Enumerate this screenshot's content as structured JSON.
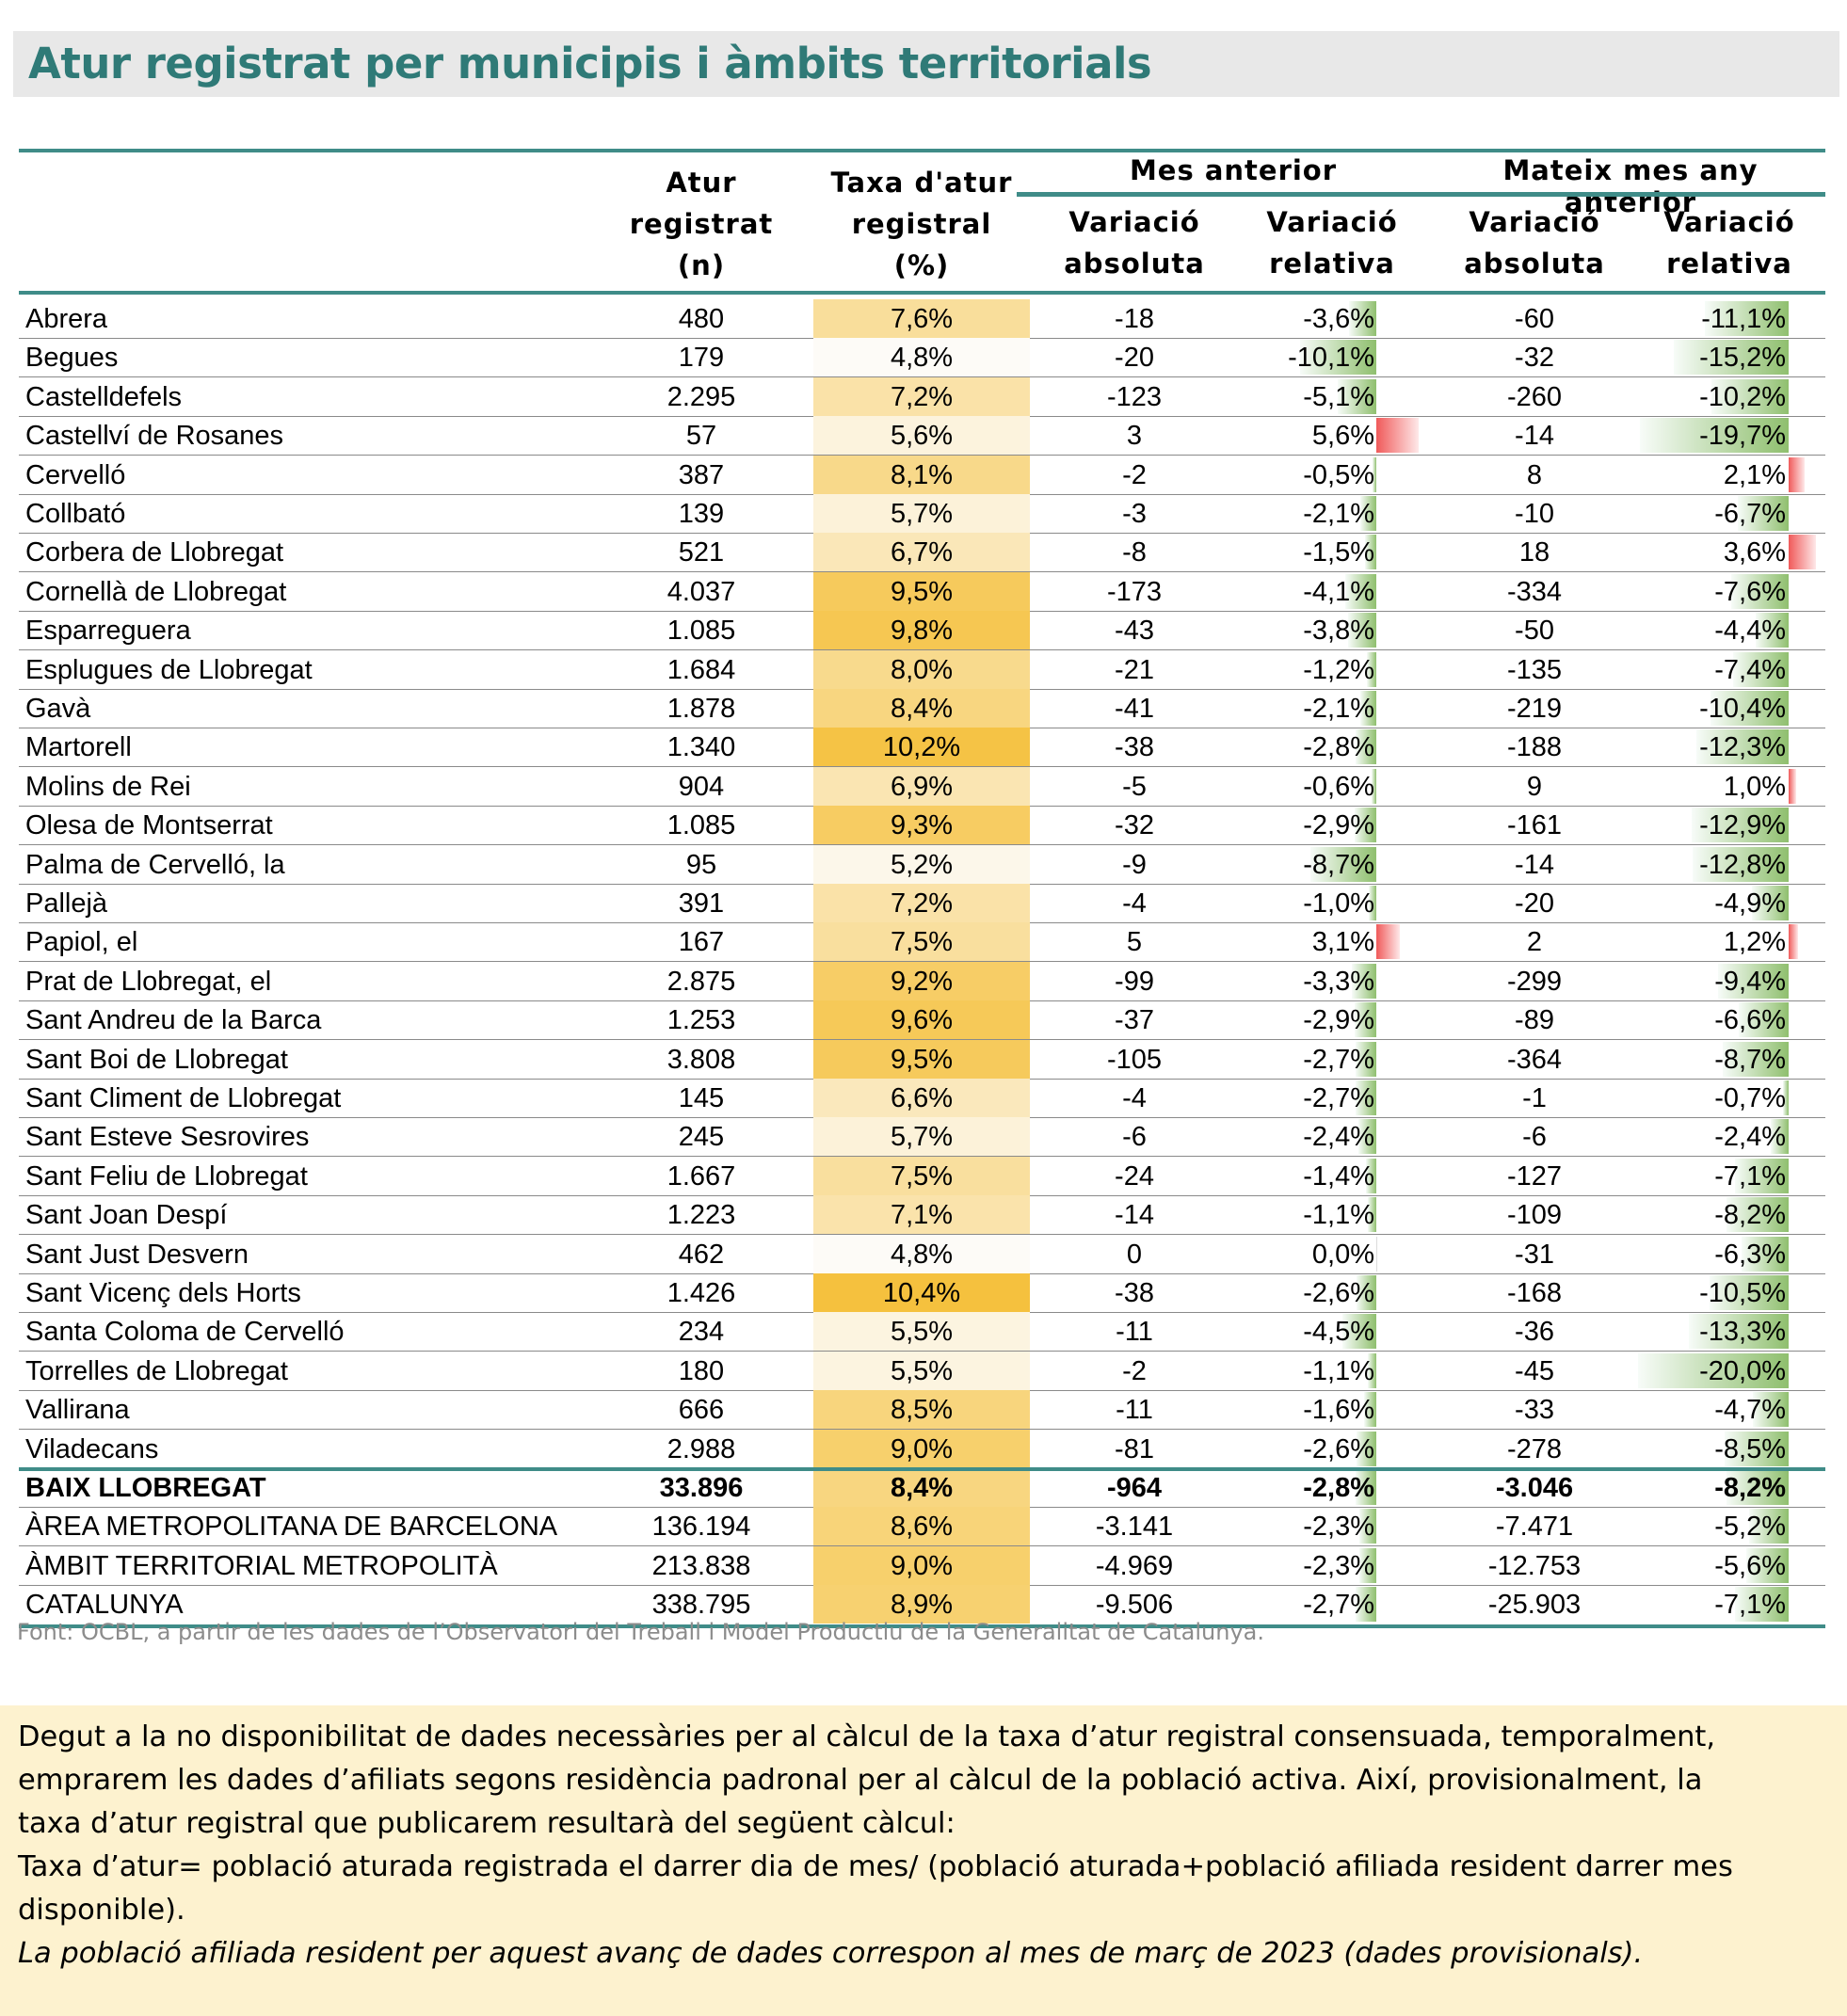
{
  "title": "Atur registrat per municipis i àmbits territorials",
  "headers": {
    "atur": [
      "Atur",
      "registrat",
      "(n)"
    ],
    "taxa": [
      "Taxa d'atur",
      "registral",
      "(%)"
    ],
    "group_month": "Mes anterior",
    "group_year": "Mateix mes any anterior",
    "var_abs": [
      "Variació",
      "absoluta"
    ],
    "var_rel": [
      "Variació",
      "relativa"
    ]
  },
  "rows": [
    {
      "name": "Abrera",
      "atur": "480",
      "taxa": "7,6%",
      "taxa_v": 7.6,
      "m_abs": "-18",
      "m_rel": "-3,6%",
      "m_rel_v": -3.6,
      "y_abs": "-60",
      "y_rel": "-11,1%",
      "y_rel_v": -11.1
    },
    {
      "name": "Begues",
      "atur": "179",
      "taxa": "4,8%",
      "taxa_v": 4.8,
      "m_abs": "-20",
      "m_rel": "-10,1%",
      "m_rel_v": -10.1,
      "y_abs": "-32",
      "y_rel": "-15,2%",
      "y_rel_v": -15.2
    },
    {
      "name": "Castelldefels",
      "atur": "2.295",
      "taxa": "7,2%",
      "taxa_v": 7.2,
      "m_abs": "-123",
      "m_rel": "-5,1%",
      "m_rel_v": -5.1,
      "y_abs": "-260",
      "y_rel": "-10,2%",
      "y_rel_v": -10.2
    },
    {
      "name": "Castellví de Rosanes",
      "atur": "57",
      "taxa": "5,6%",
      "taxa_v": 5.6,
      "m_abs": "3",
      "m_rel": "5,6%",
      "m_rel_v": 5.6,
      "y_abs": "-14",
      "y_rel": "-19,7%",
      "y_rel_v": -19.7
    },
    {
      "name": "Cervelló",
      "atur": "387",
      "taxa": "8,1%",
      "taxa_v": 8.1,
      "m_abs": "-2",
      "m_rel": "-0,5%",
      "m_rel_v": -0.5,
      "y_abs": "8",
      "y_rel": "2,1%",
      "y_rel_v": 2.1
    },
    {
      "name": "Collbató",
      "atur": "139",
      "taxa": "5,7%",
      "taxa_v": 5.7,
      "m_abs": "-3",
      "m_rel": "-2,1%",
      "m_rel_v": -2.1,
      "y_abs": "-10",
      "y_rel": "-6,7%",
      "y_rel_v": -6.7
    },
    {
      "name": "Corbera de Llobregat",
      "atur": "521",
      "taxa": "6,7%",
      "taxa_v": 6.7,
      "m_abs": "-8",
      "m_rel": "-1,5%",
      "m_rel_v": -1.5,
      "y_abs": "18",
      "y_rel": "3,6%",
      "y_rel_v": 3.6
    },
    {
      "name": "Cornellà de Llobregat",
      "atur": "4.037",
      "taxa": "9,5%",
      "taxa_v": 9.5,
      "m_abs": "-173",
      "m_rel": "-4,1%",
      "m_rel_v": -4.1,
      "y_abs": "-334",
      "y_rel": "-7,6%",
      "y_rel_v": -7.6
    },
    {
      "name": "Esparreguera",
      "atur": "1.085",
      "taxa": "9,8%",
      "taxa_v": 9.8,
      "m_abs": "-43",
      "m_rel": "-3,8%",
      "m_rel_v": -3.8,
      "y_abs": "-50",
      "y_rel": "-4,4%",
      "y_rel_v": -4.4
    },
    {
      "name": "Esplugues de Llobregat",
      "atur": "1.684",
      "taxa": "8,0%",
      "taxa_v": 8.0,
      "m_abs": "-21",
      "m_rel": "-1,2%",
      "m_rel_v": -1.2,
      "y_abs": "-135",
      "y_rel": "-7,4%",
      "y_rel_v": -7.4
    },
    {
      "name": "Gavà",
      "atur": "1.878",
      "taxa": "8,4%",
      "taxa_v": 8.4,
      "m_abs": "-41",
      "m_rel": "-2,1%",
      "m_rel_v": -2.1,
      "y_abs": "-219",
      "y_rel": "-10,4%",
      "y_rel_v": -10.4
    },
    {
      "name": "Martorell",
      "atur": "1.340",
      "taxa": "10,2%",
      "taxa_v": 10.2,
      "m_abs": "-38",
      "m_rel": "-2,8%",
      "m_rel_v": -2.8,
      "y_abs": "-188",
      "y_rel": "-12,3%",
      "y_rel_v": -12.3
    },
    {
      "name": "Molins de Rei",
      "atur": "904",
      "taxa": "6,9%",
      "taxa_v": 6.9,
      "m_abs": "-5",
      "m_rel": "-0,6%",
      "m_rel_v": -0.6,
      "y_abs": "9",
      "y_rel": "1,0%",
      "y_rel_v": 1.0
    },
    {
      "name": "Olesa de Montserrat",
      "atur": "1.085",
      "taxa": "9,3%",
      "taxa_v": 9.3,
      "m_abs": "-32",
      "m_rel": "-2,9%",
      "m_rel_v": -2.9,
      "y_abs": "-161",
      "y_rel": "-12,9%",
      "y_rel_v": -12.9
    },
    {
      "name": "Palma de Cervelló, la",
      "atur": "95",
      "taxa": "5,2%",
      "taxa_v": 5.2,
      "m_abs": "-9",
      "m_rel": "-8,7%",
      "m_rel_v": -8.7,
      "y_abs": "-14",
      "y_rel": "-12,8%",
      "y_rel_v": -12.8
    },
    {
      "name": "Pallejà",
      "atur": "391",
      "taxa": "7,2%",
      "taxa_v": 7.2,
      "m_abs": "-4",
      "m_rel": "-1,0%",
      "m_rel_v": -1.0,
      "y_abs": "-20",
      "y_rel": "-4,9%",
      "y_rel_v": -4.9
    },
    {
      "name": "Papiol, el",
      "atur": "167",
      "taxa": "7,5%",
      "taxa_v": 7.5,
      "m_abs": "5",
      "m_rel": "3,1%",
      "m_rel_v": 3.1,
      "y_abs": "2",
      "y_rel": "1,2%",
      "y_rel_v": 1.2
    },
    {
      "name": "Prat de Llobregat, el",
      "atur": "2.875",
      "taxa": "9,2%",
      "taxa_v": 9.2,
      "m_abs": "-99",
      "m_rel": "-3,3%",
      "m_rel_v": -3.3,
      "y_abs": "-299",
      "y_rel": "-9,4%",
      "y_rel_v": -9.4
    },
    {
      "name": "Sant Andreu de la Barca",
      "atur": "1.253",
      "taxa": "9,6%",
      "taxa_v": 9.6,
      "m_abs": "-37",
      "m_rel": "-2,9%",
      "m_rel_v": -2.9,
      "y_abs": "-89",
      "y_rel": "-6,6%",
      "y_rel_v": -6.6
    },
    {
      "name": "Sant Boi de Llobregat",
      "atur": "3.808",
      "taxa": "9,5%",
      "taxa_v": 9.5,
      "m_abs": "-105",
      "m_rel": "-2,7%",
      "m_rel_v": -2.7,
      "y_abs": "-364",
      "y_rel": "-8,7%",
      "y_rel_v": -8.7
    },
    {
      "name": "Sant Climent de Llobregat",
      "atur": "145",
      "taxa": "6,6%",
      "taxa_v": 6.6,
      "m_abs": "-4",
      "m_rel": "-2,7%",
      "m_rel_v": -2.7,
      "y_abs": "-1",
      "y_rel": "-0,7%",
      "y_rel_v": -0.7
    },
    {
      "name": "Sant Esteve Sesrovires",
      "atur": "245",
      "taxa": "5,7%",
      "taxa_v": 5.7,
      "m_abs": "-6",
      "m_rel": "-2,4%",
      "m_rel_v": -2.4,
      "y_abs": "-6",
      "y_rel": "-2,4%",
      "y_rel_v": -2.4
    },
    {
      "name": "Sant Feliu de Llobregat",
      "atur": "1.667",
      "taxa": "7,5%",
      "taxa_v": 7.5,
      "m_abs": "-24",
      "m_rel": "-1,4%",
      "m_rel_v": -1.4,
      "y_abs": "-127",
      "y_rel": "-7,1%",
      "y_rel_v": -7.1
    },
    {
      "name": "Sant Joan Despí",
      "atur": "1.223",
      "taxa": "7,1%",
      "taxa_v": 7.1,
      "m_abs": "-14",
      "m_rel": "-1,1%",
      "m_rel_v": -1.1,
      "y_abs": "-109",
      "y_rel": "-8,2%",
      "y_rel_v": -8.2
    },
    {
      "name": "Sant Just Desvern",
      "atur": "462",
      "taxa": "4,8%",
      "taxa_v": 4.8,
      "m_abs": "0",
      "m_rel": "0,0%",
      "m_rel_v": 0.0,
      "y_abs": "-31",
      "y_rel": "-6,3%",
      "y_rel_v": -6.3
    },
    {
      "name": "Sant Vicenç dels Horts",
      "atur": "1.426",
      "taxa": "10,4%",
      "taxa_v": 10.4,
      "m_abs": "-38",
      "m_rel": "-2,6%",
      "m_rel_v": -2.6,
      "y_abs": "-168",
      "y_rel": "-10,5%",
      "y_rel_v": -10.5
    },
    {
      "name": "Santa Coloma de Cervelló",
      "atur": "234",
      "taxa": "5,5%",
      "taxa_v": 5.5,
      "m_abs": "-11",
      "m_rel": "-4,5%",
      "m_rel_v": -4.5,
      "y_abs": "-36",
      "y_rel": "-13,3%",
      "y_rel_v": -13.3
    },
    {
      "name": "Torrelles de Llobregat",
      "atur": "180",
      "taxa": "5,5%",
      "taxa_v": 5.5,
      "m_abs": "-2",
      "m_rel": "-1,1%",
      "m_rel_v": -1.1,
      "y_abs": "-45",
      "y_rel": "-20,0%",
      "y_rel_v": -20.0
    },
    {
      "name": "Vallirana",
      "atur": "666",
      "taxa": "8,5%",
      "taxa_v": 8.5,
      "m_abs": "-11",
      "m_rel": "-1,6%",
      "m_rel_v": -1.6,
      "y_abs": "-33",
      "y_rel": "-4,7%",
      "y_rel_v": -4.7
    },
    {
      "name": "Viladecans",
      "atur": "2.988",
      "taxa": "9,0%",
      "taxa_v": 9.0,
      "m_abs": "-81",
      "m_rel": "-2,6%",
      "m_rel_v": -2.6,
      "y_abs": "-278",
      "y_rel": "-8,5%",
      "y_rel_v": -8.5
    }
  ],
  "totals": [
    {
      "name": "BAIX LLOBREGAT",
      "bold": true,
      "atur": "33.896",
      "taxa": "8,4%",
      "taxa_v": 8.4,
      "m_abs": "-964",
      "m_rel": "-2,8%",
      "m_rel_v": -2.8,
      "y_abs": "-3.046",
      "y_rel": "-8,2%",
      "y_rel_v": -8.2
    },
    {
      "name": "ÀREA METROPOLITANA DE BARCELONA",
      "bold": false,
      "atur": "136.194",
      "taxa": "8,6%",
      "taxa_v": 8.6,
      "m_abs": "-3.141",
      "m_rel": "-2,3%",
      "m_rel_v": -2.3,
      "y_abs": "-7.471",
      "y_rel": "-5,2%",
      "y_rel_v": -5.2
    },
    {
      "name": "ÀMBIT TERRITORIAL METROPOLITÀ",
      "bold": false,
      "atur": "213.838",
      "taxa": "9,0%",
      "taxa_v": 9.0,
      "m_abs": "-4.969",
      "m_rel": "-2,3%",
      "m_rel_v": -2.3,
      "y_abs": "-12.753",
      "y_rel": "-5,6%",
      "y_rel_v": -5.6
    },
    {
      "name": "CATALUNYA",
      "bold": false,
      "atur": "338.795",
      "taxa": "8,9%",
      "taxa_v": 8.9,
      "m_abs": "-9.506",
      "m_rel": "-2,7%",
      "m_rel_v": -2.7,
      "y_abs": "-25.903",
      "y_rel": "-7,1%",
      "y_rel_v": -7.1
    }
  ],
  "source": "Font: OCBL, a partir de les dades de l’Observatori del Treball i Model Productiu de la Generalitat de Catalunya.",
  "note_lines": [
    "Degut a la no disponibilitat de dades necessàries per al càlcul de la taxa d’atur registral consensuada, temporalment,",
    "emprarem les dades d’afiliats segons residència padronal per al càlcul de la població activa. Així, provisionalment, la",
    "taxa d’atur registral que publicarem resultarà del següent càlcul:",
    "Taxa d’atur= població aturada registrada el darrer dia de mes/ (població aturada+població afiliada resident darrer mes",
    "disponible)."
  ],
  "note_italic": "La població afiliada resident per aquest avanç de dades correspon al mes de març de 2023 (dades provisionals).",
  "colors": {
    "teal": "#3f8c88",
    "title": "#2f7a77",
    "heat_low": "#fdfbf7",
    "heat_high": "#f5c13e",
    "neg_bar": "#8fbf6e",
    "pos_bar": "#f05a5a",
    "note_bg": "#fdf2cf"
  }
}
